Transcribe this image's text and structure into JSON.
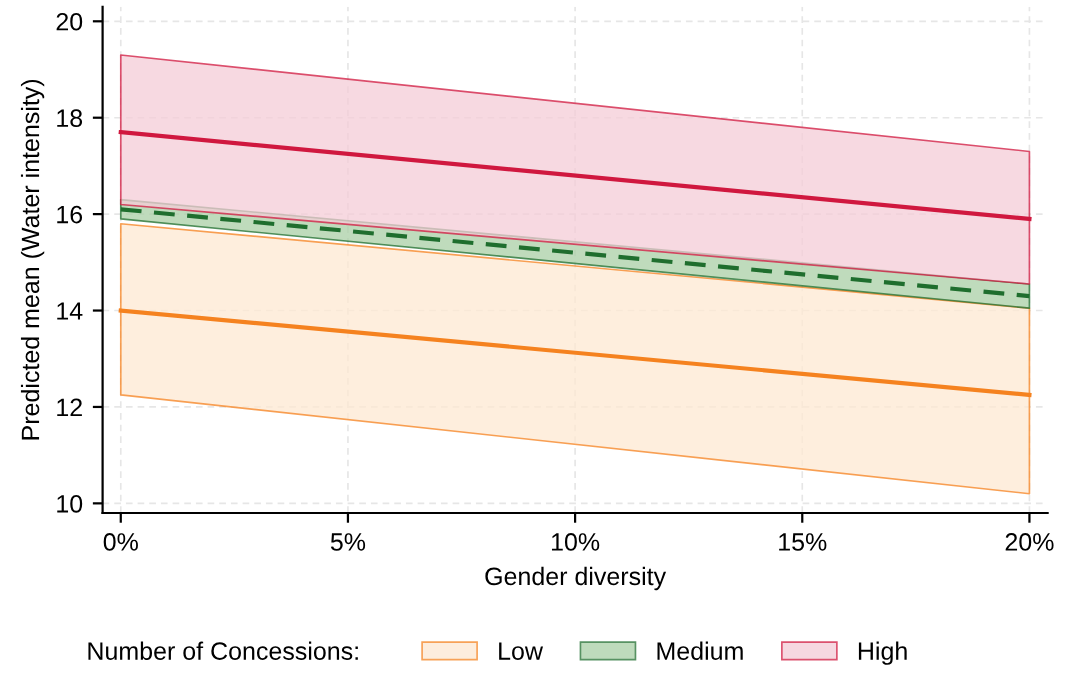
{
  "chart_data": {
    "type": "line",
    "xlabel": "Gender diversity",
    "ylabel": "Predicted mean (Water intensity)",
    "legend_title": "Number of Concessions:",
    "x": [
      0,
      20
    ],
    "xlim": [
      -0.4,
      20.4
    ],
    "ylim": [
      9.8,
      20.3
    ],
    "xticks": [
      {
        "value": 0,
        "label": "0%"
      },
      {
        "value": 5,
        "label": "5%"
      },
      {
        "value": 10,
        "label": "10%"
      },
      {
        "value": 15,
        "label": "15%"
      },
      {
        "value": 20,
        "label": "20%"
      }
    ],
    "yticks": [
      10,
      12,
      14,
      16,
      18,
      20
    ],
    "grid": true,
    "legend": "bottom",
    "series": [
      {
        "name": "Low",
        "color": "#f5821f",
        "values": [
          14.0,
          12.25
        ],
        "lower": [
          12.25,
          10.2
        ],
        "upper": [
          15.8,
          14.05
        ],
        "line_style": "solid"
      },
      {
        "name": "Medium",
        "color": "#1f6e2e",
        "values": [
          16.1,
          14.3
        ],
        "lower": [
          15.9,
          14.05
        ],
        "upper": [
          16.3,
          14.55
        ],
        "line_style": "dashed"
      },
      {
        "name": "High",
        "color": "#d0183f",
        "values": [
          17.7,
          15.9
        ],
        "lower": [
          16.2,
          14.55
        ],
        "upper": [
          19.3,
          17.3
        ],
        "line_style": "solid"
      }
    ]
  }
}
